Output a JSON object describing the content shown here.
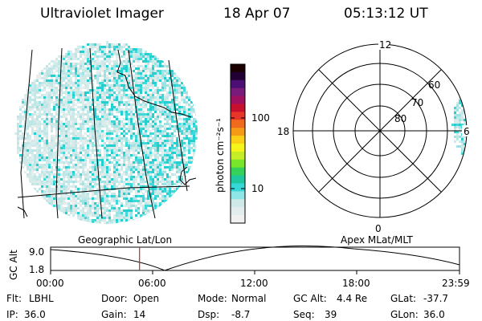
{
  "header": {
    "title": "Ultraviolet Imager",
    "date": "18 Apr 07",
    "time": "05:13:12 UT"
  },
  "colorbar": {
    "label": "photon cm⁻²s⁻¹",
    "ticks": [
      "100",
      "10"
    ],
    "colors": [
      "#1a0000",
      "#220033",
      "#4b0f73",
      "#7a1a7a",
      "#a01060",
      "#c8102e",
      "#e8352a",
      "#f06a1e",
      "#f59a17",
      "#fad017",
      "#f5f51a",
      "#c6ee27",
      "#78e62a",
      "#35d15a",
      "#20c8a0",
      "#38d7d7",
      "#8ee6e6",
      "#cfe9e9",
      "#e2ecec",
      "#f0f0f0"
    ]
  },
  "polar": {
    "labels": {
      "noon": "12",
      "dusk": "18",
      "dawn": "6",
      "midnight": "0"
    },
    "lat_labels": [
      "60",
      "70",
      "80"
    ]
  },
  "panel_titles": {
    "left": "Geographic Lat/Lon",
    "right": "Apex MLat/MLT"
  },
  "timeline": {
    "ylabel": "GC Alt",
    "y_ticks": [
      "9.0",
      "1.8"
    ],
    "x_ticks": [
      "00:00",
      "06:00",
      "12:00",
      "18:00",
      "23:59"
    ],
    "marker_fraction": 0.2175
  },
  "info": {
    "row1": [
      {
        "k": "Flt:",
        "v": "LBHL"
      },
      {
        "k": "Door:",
        "v": "Open"
      },
      {
        "k": "Mode:",
        "v": "Normal"
      },
      {
        "k": "GC Alt:",
        "v": "4.4 Re"
      },
      {
        "k": "GLat:",
        "v": "-37.7"
      }
    ],
    "row2": [
      {
        "k": "IP:",
        "v": "36.0"
      },
      {
        "k": "Gain:",
        "v": "14"
      },
      {
        "k": "Dsp:",
        "v": "-8.7"
      },
      {
        "k": "Seq:",
        "v": "39"
      },
      {
        "k": "GLon:",
        "v": "36.0"
      }
    ]
  },
  "colors": {
    "aurora_cyan": "#3fd9d9",
    "aurora_light": "#cfe9e9",
    "marker": "#b03030"
  }
}
